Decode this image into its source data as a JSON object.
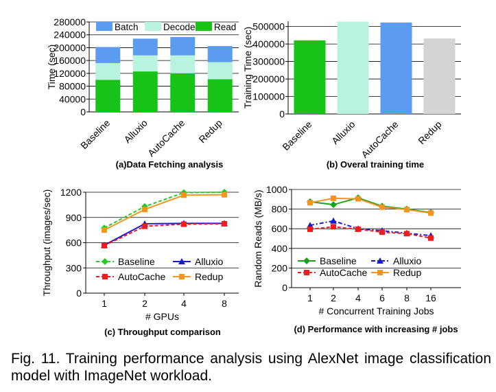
{
  "figure": {
    "caption": "Fig. 11. Training performance analysis using AlexNet image classification model with ImageNet workload."
  },
  "chart_data": [
    {
      "id": "a",
      "type": "bar",
      "stacked": true,
      "title": "(a)Data Fetching analysis",
      "xlabel": "",
      "ylabel": "Time (sec)",
      "categories": [
        "Baseline",
        "Alluxio",
        "AutoCache",
        "Redup"
      ],
      "series": [
        {
          "name": "Read",
          "color": "#18c318",
          "values": [
            100000,
            126000,
            120000,
            102000
          ]
        },
        {
          "name": "Decode",
          "color": "#b8f3de",
          "values": [
            52000,
            50000,
            56000,
            53000
          ]
        },
        {
          "name": "Batch",
          "color": "#5b9cf0",
          "values": [
            50000,
            52000,
            57000,
            50000
          ]
        }
      ],
      "legend_order": [
        "Batch",
        "Decode",
        "Read"
      ],
      "ylim": [
        0,
        280000
      ],
      "yticks": [
        0,
        40000,
        80000,
        120000,
        160000,
        200000,
        240000,
        280000
      ],
      "ytick_labels": [
        "0",
        "40000",
        "80000",
        "120000",
        "160000",
        "200000",
        "240000",
        "280000"
      ],
      "grid": true,
      "legend_position": "top"
    },
    {
      "id": "b",
      "type": "bar",
      "title": "(b) Overal training time",
      "xlabel": "",
      "ylabel": "Training Time (sec)",
      "categories": [
        "Baseline",
        "Alluxio",
        "AutoCache",
        "Redup"
      ],
      "values": [
        421000,
        528000,
        523000,
        432000
      ],
      "colors": [
        "#18c318",
        "#b8f3de",
        "#5b9cf0",
        "#d4d4d4"
      ],
      "ylim": [
        0,
        530000
      ],
      "yticks": [
        0,
        100000,
        200000,
        300000,
        400000,
        500000
      ],
      "ytick_labels": [
        "0",
        "100000",
        "200000",
        "300000",
        "400000",
        "500000"
      ],
      "grid": true
    },
    {
      "id": "c",
      "type": "line",
      "title": "(c) Throughput comparison",
      "xlabel": "# GPUs",
      "ylabel": "Throughput (images/sec)",
      "categories": [
        "1",
        "2",
        "4",
        "8"
      ],
      "series": [
        {
          "name": "Baseline",
          "color": "#22cc22",
          "marker": "diamond",
          "dash": "dashed",
          "values": [
            775,
            1030,
            1195,
            1200
          ]
        },
        {
          "name": "Alluxio",
          "color": "#1a1acc",
          "marker": "triangle",
          "dash": "solid",
          "values": [
            570,
            825,
            830,
            830
          ]
        },
        {
          "name": "AutoCache",
          "color": "#ee1c1c",
          "marker": "square",
          "dash": "dashed",
          "values": [
            565,
            795,
            820,
            825
          ]
        },
        {
          "name": "Redup",
          "color": "#f5941e",
          "marker": "square",
          "dash": "solid",
          "values": [
            750,
            995,
            1165,
            1170
          ]
        }
      ],
      "ylim": [
        0,
        1200
      ],
      "yticks": [
        0,
        300,
        600,
        900,
        1200
      ],
      "ytick_labels": [
        "0",
        "300",
        "600",
        "900",
        "1200"
      ],
      "grid": true,
      "legend_position": "bottom-center"
    },
    {
      "id": "d",
      "type": "line",
      "title": "(d) Performance with increasing # jobs",
      "xlabel": "# Concurrent Training  Jobs",
      "ylabel": "Random Reads (MB/s)",
      "categories": [
        "1",
        "2",
        "4",
        "6",
        "8",
        "16"
      ],
      "series": [
        {
          "name": "Baseline",
          "color": "#1aa31a",
          "marker": "diamond",
          "dash": "solid",
          "values": [
            875,
            845,
            915,
            830,
            800,
            765
          ]
        },
        {
          "name": "Alluxio",
          "color": "#1a1acc",
          "marker": "triangle",
          "dash": "dashdot",
          "values": [
            635,
            680,
            600,
            580,
            555,
            530
          ]
        },
        {
          "name": "AutoCache",
          "color": "#ee1c1c",
          "marker": "square",
          "dash": "dashed",
          "values": [
            595,
            620,
            595,
            565,
            550,
            505
          ]
        },
        {
          "name": "Redup",
          "color": "#f5941e",
          "marker": "square",
          "dash": "solid",
          "values": [
            865,
            910,
            905,
            820,
            795,
            760
          ]
        }
      ],
      "ylim": [
        0,
        1000
      ],
      "yticks": [
        0,
        200,
        400,
        600,
        800,
        1000
      ],
      "ytick_labels": [
        "0",
        "200",
        "400",
        "600",
        "800",
        "1000"
      ],
      "grid": true,
      "legend_position": "bottom-center"
    }
  ]
}
